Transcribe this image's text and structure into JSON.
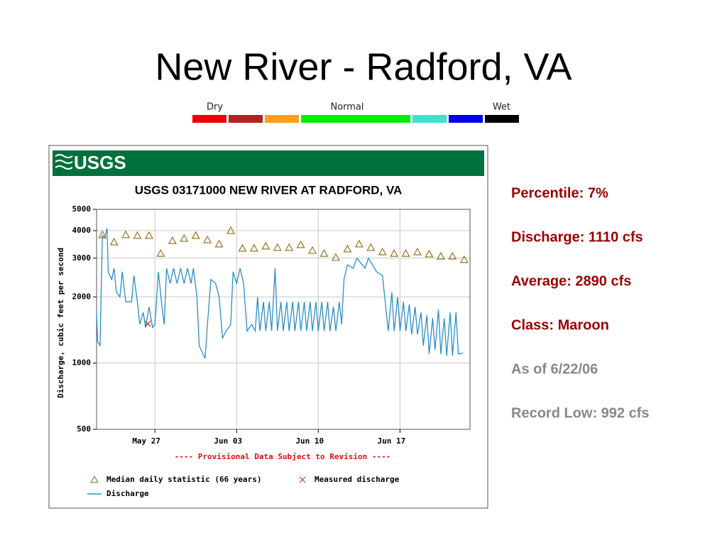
{
  "title": "New River - Radford, VA",
  "condition_scale": {
    "labels": [
      "Dry",
      "Normal",
      "Wet"
    ],
    "colors": [
      "#ee0000",
      "#b22222",
      "#ff9e1b",
      "#00ee00",
      "#40e0d0",
      "#0000ee",
      "#000000"
    ]
  },
  "stats": {
    "highlighted": [
      "Percentile:  7%",
      "Discharge:  1110 cfs",
      "Average:  2890 cfs",
      "Class:  Maroon"
    ],
    "notes": [
      "As of 6/22/06",
      "Record Low: 992 cfs"
    ]
  },
  "chart_data": {
    "type": "line",
    "logo": "USGS",
    "title": "USGS 03171000 NEW RIVER AT RADFORD, VA",
    "y_label": "Discharge, cubic feet per second",
    "note": "---- Provisional Data Subject to Revision ----",
    "y_log": true,
    "grid": true,
    "xlim": [
      0,
      32
    ],
    "xticks": [
      {
        "value": 5,
        "label": "May 27"
      },
      {
        "value": 12,
        "label": "Jun 03"
      },
      {
        "value": 19,
        "label": "Jun 10"
      },
      {
        "value": 26,
        "label": "Jun 17"
      }
    ],
    "ylim": [
      500,
      5000
    ],
    "yticks": [
      500,
      1000,
      2000,
      3000,
      4000,
      5000
    ],
    "series": [
      {
        "name": "Median daily statistic (66 years)",
        "marker": "triangle",
        "color": "#8b6a10",
        "x": [
          0.5,
          1.5,
          2.5,
          3.5,
          4.5,
          5.5,
          6.5,
          7.5,
          8.5,
          9.5,
          10.5,
          11.5,
          12.5,
          13.5,
          14.5,
          15.5,
          16.5,
          17.5,
          18.5,
          19.5,
          20.5,
          21.5,
          22.5,
          23.5,
          24.5,
          25.5,
          26.5,
          27.5,
          28.5,
          29.5,
          30.5,
          31.5
        ],
        "values": [
          3830,
          3550,
          3830,
          3800,
          3800,
          3150,
          3600,
          3690,
          3800,
          3630,
          3475,
          4000,
          3325,
          3325,
          3400,
          3350,
          3350,
          3450,
          3250,
          3150,
          3020,
          3300,
          3475,
          3350,
          3200,
          3150,
          3150,
          3200,
          3130,
          3060,
          3060,
          2950
        ]
      },
      {
        "name": "Measured discharge",
        "marker": "cross",
        "color": "#dd2222",
        "x": [
          4.4
        ],
        "values": [
          1510
        ]
      },
      {
        "name": "Discharge",
        "marker": "line",
        "color": "#2a8fc8",
        "x": [
          0,
          0.1,
          0.3,
          0.5,
          0.7,
          0.9,
          1.0,
          1.3,
          1.5,
          1.7,
          2.0,
          2.2,
          2.5,
          3.0,
          3.2,
          3.5,
          3.7,
          4.0,
          4.2,
          4.5,
          4.8,
          5.0,
          5.3,
          5.6,
          5.8,
          6.0,
          6.3,
          6.6,
          6.9,
          7.2,
          7.5,
          7.8,
          8.1,
          8.3,
          8.6,
          8.8,
          9.3,
          9.5,
          9.8,
          10.2,
          10.5,
          10.8,
          11.1,
          11.5,
          11.7,
          12.0,
          12.3,
          12.6,
          12.9,
          13.3,
          13.6,
          13.8,
          14.0,
          14.3,
          14.5,
          14.8,
          15.0,
          15.3,
          15.5,
          15.8,
          16.0,
          16.3,
          16.5,
          16.8,
          17.0,
          17.3,
          17.5,
          17.8,
          18.0,
          18.3,
          18.5,
          18.8,
          19.0,
          19.3,
          19.5,
          19.8,
          20.0,
          20.3,
          20.5,
          20.8,
          21.0,
          21.2,
          21.5,
          22.0,
          22.3,
          23.0,
          23.3,
          24.0,
          24.5,
          25.0,
          25.3,
          25.5,
          25.8,
          26.0,
          26.3,
          26.5,
          26.8,
          27.0,
          27.3,
          27.5,
          27.8,
          28.0,
          28.3,
          28.5,
          28.8,
          29.0,
          29.3,
          29.5,
          29.8,
          30.0,
          30.3,
          30.5,
          30.8,
          31.0,
          31.4
        ],
        "values": [
          1700,
          1250,
          1200,
          3800,
          3700,
          4100,
          2600,
          2400,
          2700,
          2100,
          2000,
          2600,
          1900,
          1900,
          2500,
          1900,
          1500,
          1700,
          1450,
          1800,
          1450,
          1500,
          2600,
          1800,
          1500,
          2700,
          2300,
          2700,
          2300,
          2700,
          2300,
          2700,
          2300,
          2700,
          2000,
          1200,
          1050,
          1500,
          2400,
          2300,
          2000,
          1300,
          1400,
          1500,
          2600,
          2300,
          2700,
          2300,
          1400,
          1500,
          1400,
          2000,
          1400,
          1900,
          1400,
          1900,
          1400,
          2700,
          1400,
          1900,
          1400,
          1900,
          1400,
          1900,
          1400,
          1900,
          1400,
          1900,
          1400,
          1900,
          1400,
          1900,
          1400,
          1900,
          1400,
          1900,
          1400,
          1800,
          1400,
          1900,
          1500,
          2400,
          2800,
          2700,
          3000,
          2700,
          3000,
          2600,
          2500,
          1400,
          2100,
          1400,
          2000,
          1400,
          1900,
          1400,
          1850,
          1350,
          1800,
          1350,
          1700,
          1200,
          1650,
          1100,
          1600,
          1150,
          1750,
          1100,
          1600,
          1080,
          1700,
          1080,
          1700,
          1100,
          1110
        ]
      }
    ]
  }
}
